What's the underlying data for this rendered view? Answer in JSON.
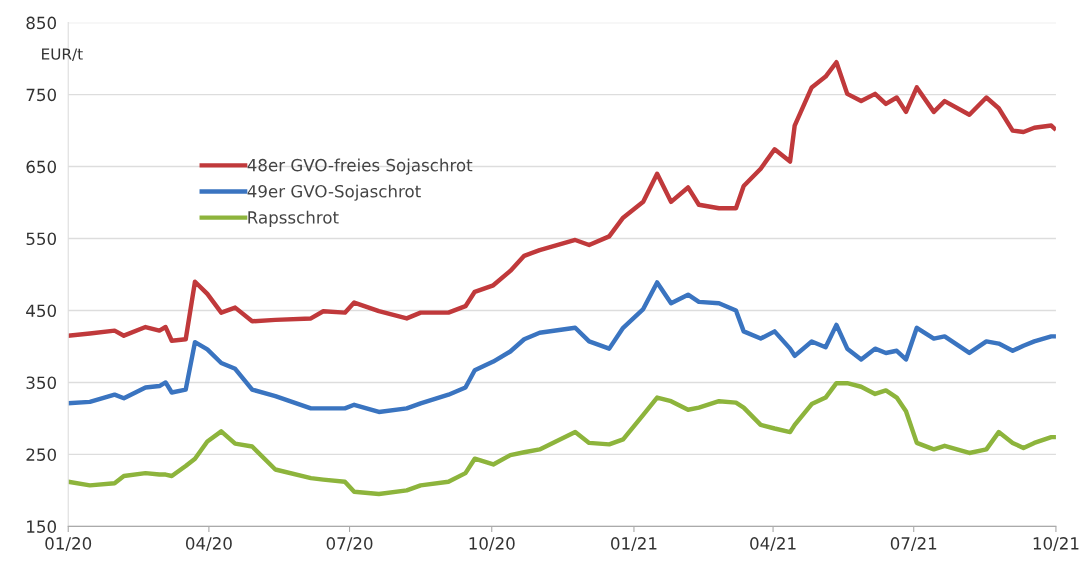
{
  "chart_data": {
    "type": "line",
    "ylabel": "EUR/t",
    "x": [
      "2020-01-01",
      "2020-01-15",
      "2020-01-31",
      "2020-02-06",
      "2020-02-20",
      "2020-02-29",
      "2020-03-04",
      "2020-03-08",
      "2020-03-17",
      "2020-03-23",
      "2020-03-31",
      "2020-04-09",
      "2020-04-18",
      "2020-04-29",
      "2020-05-14",
      "2020-06-06",
      "2020-06-14",
      "2020-06-28",
      "2020-07-04",
      "2020-07-20",
      "2020-08-07",
      "2020-08-16",
      "2020-09-03",
      "2020-09-14",
      "2020-09-20",
      "2020-10-02",
      "2020-10-13",
      "2020-10-22",
      "2020-11-01",
      "2020-11-24",
      "2020-12-03",
      "2020-12-16",
      "2020-12-25",
      "2021-01-07",
      "2021-01-16",
      "2021-01-25",
      "2021-02-05",
      "2021-02-12",
      "2021-02-25",
      "2021-03-08",
      "2021-03-13",
      "2021-03-24",
      "2021-04-02",
      "2021-04-12",
      "2021-04-15",
      "2021-04-26",
      "2021-05-05",
      "2021-05-12",
      "2021-05-19",
      "2021-05-28",
      "2021-06-06",
      "2021-06-13",
      "2021-06-20",
      "2021-06-26",
      "2021-07-03",
      "2021-07-14",
      "2021-07-21",
      "2021-08-06",
      "2021-08-17",
      "2021-08-25",
      "2021-09-03",
      "2021-09-10",
      "2021-09-17",
      "2021-09-28",
      "2021-09-30"
    ],
    "series": [
      {
        "name": "48er GVO-freies Sojaschrot",
        "color": "#c0393b",
        "values": [
          415,
          418,
          422,
          415,
          427,
          422,
          427,
          408,
          410,
          490,
          473,
          447,
          454,
          435,
          437,
          439,
          449,
          447,
          461,
          449,
          439,
          447,
          447,
          456,
          476,
          485,
          505,
          526,
          534,
          548,
          541,
          553,
          579,
          601,
          640,
          601,
          621,
          597,
          592,
          592,
          623,
          647,
          674,
          657,
          707,
          760,
          775,
          795,
          751,
          741,
          751,
          737,
          746,
          726,
          760,
          726,
          741,
          722,
          746,
          731,
          700,
          698,
          704,
          707,
          703
        ]
      },
      {
        "name": "49er GVO-Sojaschrot",
        "color": "#3a74c0",
        "values": [
          321,
          323,
          333,
          328,
          343,
          345,
          350,
          336,
          340,
          406,
          396,
          377,
          369,
          340,
          331,
          314,
          314,
          314,
          319,
          309,
          314,
          321,
          333,
          343,
          367,
          379,
          393,
          410,
          419,
          426,
          407,
          397,
          426,
          452,
          489,
          460,
          472,
          462,
          460,
          450,
          421,
          411,
          421,
          397,
          387,
          407,
          399,
          430,
          397,
          382,
          397,
          391,
          394,
          382,
          426,
          411,
          414,
          391,
          407,
          404,
          394,
          401,
          407,
          414,
          414
        ]
      },
      {
        "name": "Rapsschrot",
        "color": "#8db43c",
        "values": [
          212,
          207,
          210,
          220,
          224,
          222,
          222,
          220,
          234,
          244,
          268,
          282,
          265,
          261,
          229,
          217,
          215,
          212,
          198,
          195,
          200,
          207,
          212,
          224,
          244,
          236,
          249,
          253,
          257,
          281,
          266,
          264,
          271,
          305,
          329,
          324,
          312,
          315,
          324,
          322,
          315,
          291,
          286,
          281,
          291,
          320,
          329,
          349,
          349,
          344,
          334,
          339,
          329,
          310,
          266,
          257,
          262,
          252,
          257,
          281,
          266,
          259,
          266,
          274,
          274
        ]
      }
    ],
    "xlim": [
      "2020-01-01",
      "2021-10-01"
    ],
    "xticks": [
      {
        "value": "2020-01-01",
        "label": "01/20"
      },
      {
        "value": "2020-04-01",
        "label": "04/20"
      },
      {
        "value": "2020-07-01",
        "label": "07/20"
      },
      {
        "value": "2020-10-01",
        "label": "10/20"
      },
      {
        "value": "2021-01-01",
        "label": "01/21"
      },
      {
        "value": "2021-04-01",
        "label": "04/21"
      },
      {
        "value": "2021-07-01",
        "label": "07/21"
      },
      {
        "value": "2021-10-01",
        "label": "10/21"
      }
    ],
    "ylim": [
      150,
      850
    ],
    "yticks": [
      150,
      250,
      350,
      450,
      550,
      650,
      750,
      850
    ],
    "grid": "y",
    "legend": "top left",
    "marker": "none",
    "line_style": "solid"
  }
}
